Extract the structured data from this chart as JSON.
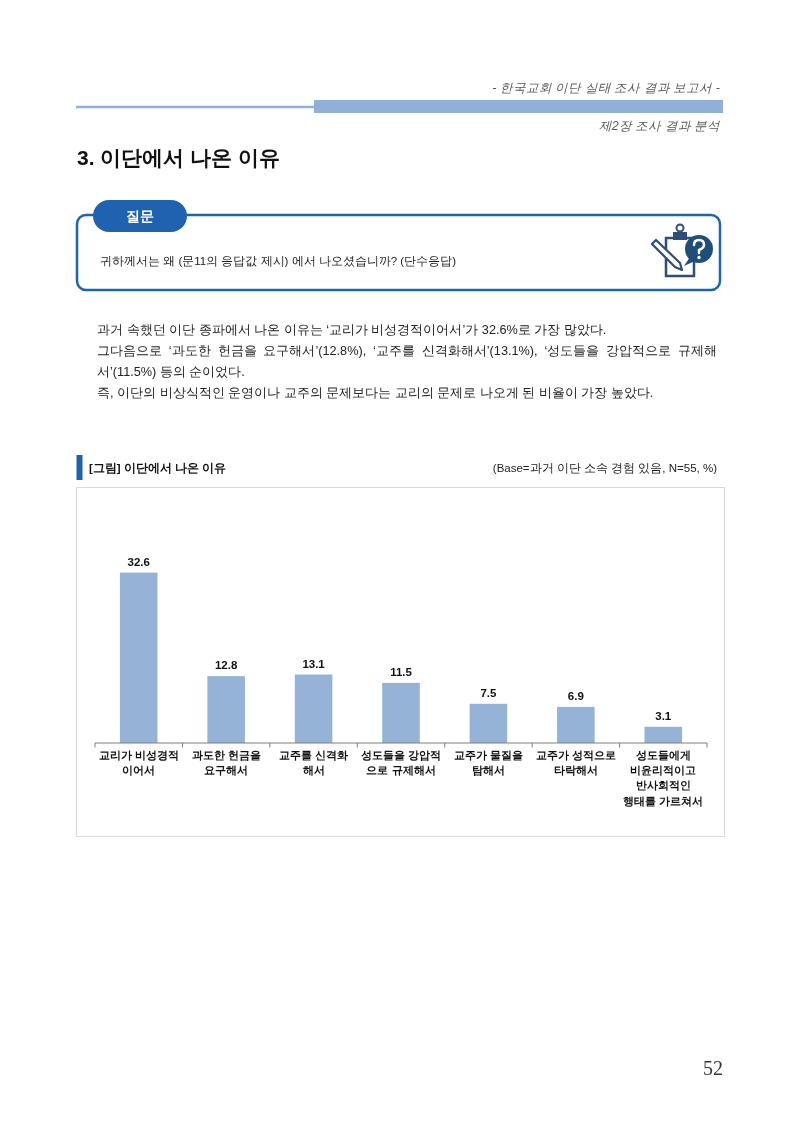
{
  "chart_data": {
    "type": "bar",
    "title": "[그림] 이단에서 나온 이유",
    "subtitle": "(Base=과거 이단 소속 경험 있음, N=55, %)",
    "categories": [
      "교리가 비성경적\n이어서",
      "과도한 헌금을\n요구해서",
      "교주를 신격화\n해서",
      "성도들을 강압적\n으로 규제해서",
      "교주가 물질을\n탐해서",
      "교주가 성적으로\n타락해서",
      "성도들에게\n비윤리적이고\n반사회적인\n행태를 가르쳐서"
    ],
    "values": [
      32.6,
      12.8,
      13.1,
      11.5,
      7.5,
      6.9,
      3.1
    ],
    "color": "#95b3d7",
    "data_labels": true,
    "annotations": [
      "- 한국교회 이단 실태 조사 결과 보고서 -",
      "제2장 조사 결과 분석",
      "3. 이단에서 나온 이유",
      "질문",
      "귀하께서는 왜 (문11의 응답값 제시) 에서 나오셨습니까? (단수응답)",
      "과거 속했던 이단 종파에서 나온 이유는 ‘교리가 비성경적이어서’가 32.6%로 가장 많았다.",
      "그다음으로 ‘과도한 헌금을 요구해서’(12.8%), ‘교주를 신격화해서’(13.1%), ‘성도들을 강압적으로 규제해서’(11.5%) 등의 순이었다.",
      "즉, 이단의 비상식적인 운영이나 교주의 문제보다는 교리의 문제로 나오게 된 비율이 가장 높았다.",
      "52"
    ]
  }
}
